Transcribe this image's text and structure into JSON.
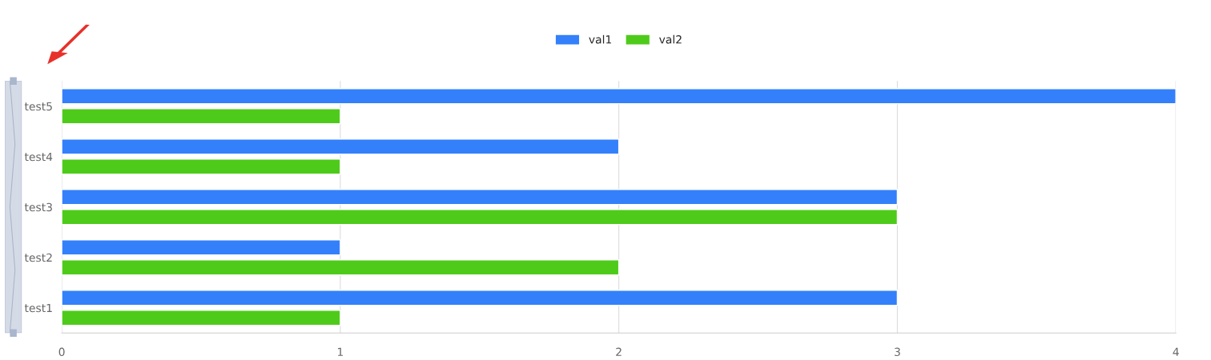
{
  "chart_data": {
    "type": "bar",
    "orientation": "horizontal",
    "categories": [
      "test5",
      "test4",
      "test3",
      "test2",
      "test1"
    ],
    "series": [
      {
        "name": "val1",
        "color": "#3480fb",
        "values": [
          4,
          2,
          3,
          1,
          3
        ]
      },
      {
        "name": "val2",
        "color": "#4ecb1a",
        "values": [
          1,
          1,
          3,
          2,
          1
        ]
      }
    ],
    "xlim": [
      0,
      4
    ],
    "xticks": [
      0,
      1,
      2,
      3,
      4
    ],
    "grid": "x",
    "legend": "top"
  }
}
